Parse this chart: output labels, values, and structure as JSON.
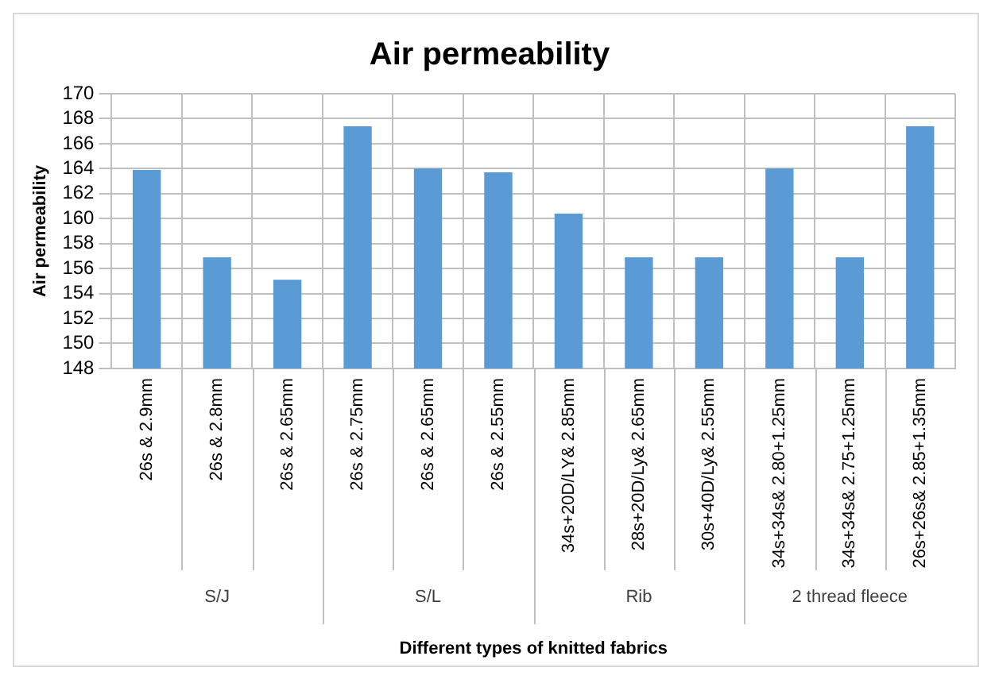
{
  "chart_data": {
    "type": "bar",
    "title": "Air permeability",
    "xlabel": "Different types of knitted fabrics",
    "ylabel": "Air permeability",
    "categories": [
      "26s & 2.9mm",
      "26s & 2.8mm",
      "26s & 2.65mm",
      "26s & 2.75mm",
      "26s & 2.65mm",
      "26s & 2.55mm",
      "34s+20D/LY& 2.85mm",
      "28s+20D/Ly& 2.65mm",
      "30s+40D/Ly& 2.55mm",
      "34s+34s& 2.80+1.25mm",
      "34s+34s& 2.75+1.25mm",
      "26s+26s& 2.85+1.35mm"
    ],
    "values": [
      163.9,
      156.9,
      155.1,
      167.4,
      164.0,
      163.7,
      160.4,
      156.9,
      156.9,
      164.0,
      156.9,
      167.4
    ],
    "color": "#5b9bd5",
    "ylim": [
      148,
      170
    ],
    "yticks": [
      148,
      150,
      152,
      154,
      156,
      158,
      160,
      162,
      164,
      166,
      168,
      170
    ],
    "grid": true,
    "annotations": [
      "S/J",
      "S/L",
      "Rib",
      "2 thread fleece"
    ]
  }
}
